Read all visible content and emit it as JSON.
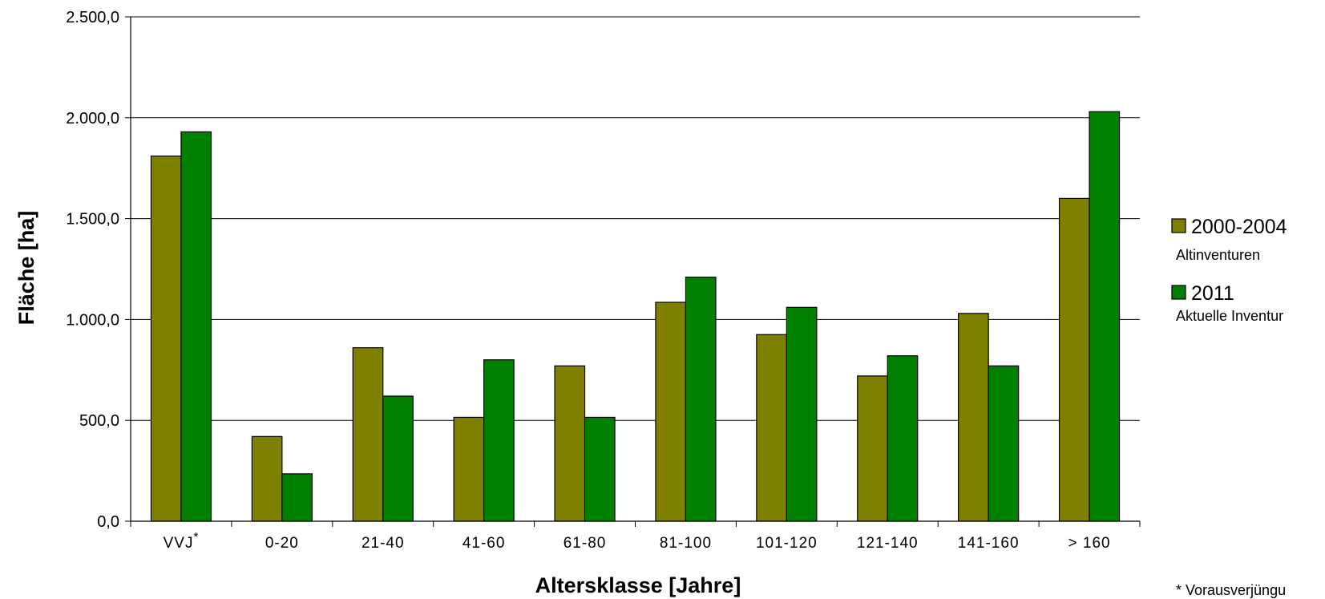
{
  "chart_data": {
    "type": "bar",
    "title": "",
    "xlabel": "Altersklasse [Jahre]",
    "ylabel": "Fläche [ha]",
    "ylim": [
      0,
      2500
    ],
    "yticks": [
      0,
      500,
      1000,
      1500,
      2000,
      2500
    ],
    "ytick_labels": [
      "0,0",
      "500,0",
      "1.000,0",
      "1.500,0",
      "2.000,0",
      "2.500,0"
    ],
    "categories": [
      {
        "label": "VVJ",
        "sup": "*"
      },
      {
        "label": "0-20",
        "sup": ""
      },
      {
        "label": "21-40",
        "sup": ""
      },
      {
        "label": "41-60",
        "sup": ""
      },
      {
        "label": "61-80",
        "sup": ""
      },
      {
        "label": "81-100",
        "sup": ""
      },
      {
        "label": "101-120",
        "sup": ""
      },
      {
        "label": "121-140",
        "sup": ""
      },
      {
        "label": "141-160",
        "sup": ""
      },
      {
        "label": "> 160",
        "sup": ""
      }
    ],
    "series": [
      {
        "name": "2000-2004",
        "sublabel": "Altinventuren",
        "color": "#808000",
        "values": [
          1810,
          420,
          860,
          515,
          770,
          1085,
          925,
          720,
          1030,
          1600
        ]
      },
      {
        "name": "2011",
        "sublabel": "Aktuelle Inventur",
        "color": "#008000",
        "values": [
          1930,
          235,
          620,
          800,
          515,
          1210,
          1060,
          820,
          770,
          2030
        ]
      }
    ],
    "grid": "horizontal",
    "legend": "right",
    "footnote": "* Vorausverjüngu"
  }
}
